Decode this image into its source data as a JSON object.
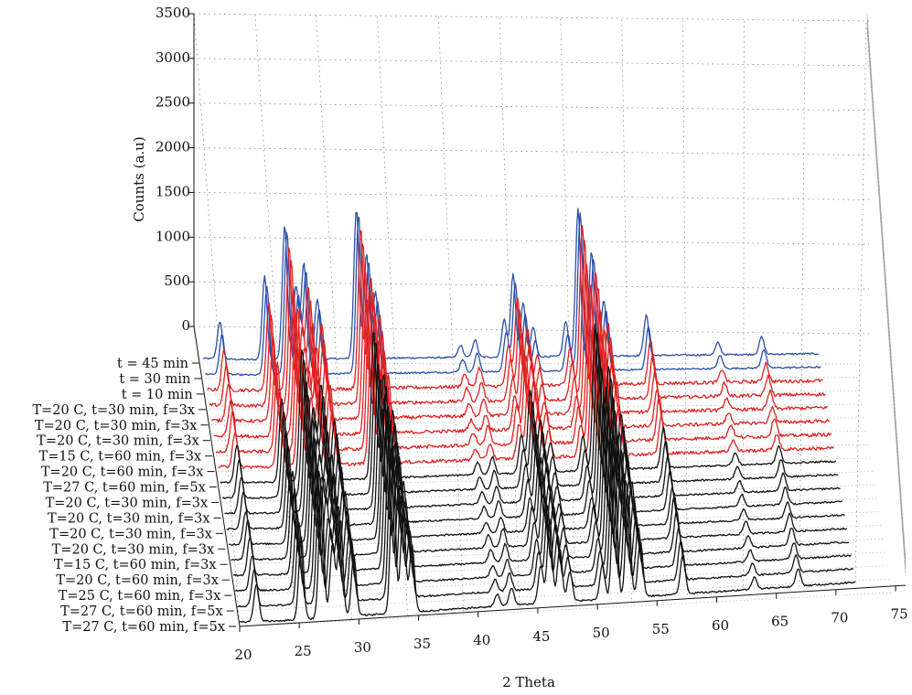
{
  "chart_data": {
    "type": "line",
    "title": "",
    "xlabel": "2 Theta",
    "zlabel": "Counts (a.u)",
    "view": "3d-waterfall",
    "grid": true,
    "xlim": [
      20,
      75
    ],
    "zlim": [
      0,
      3500
    ],
    "x_ticks": [
      20,
      25,
      30,
      35,
      40,
      45,
      50,
      55,
      60,
      65,
      70,
      75
    ],
    "z_ticks": [
      0,
      500,
      1000,
      1500,
      2000,
      2500,
      3000,
      3500
    ],
    "colors": {
      "blue": "#2b4fa8",
      "red": "#e02020",
      "black": "#111111"
    },
    "peaks_2theta": [
      {
        "x": 21.5,
        "h": 0.28
      },
      {
        "x": 25.5,
        "h": 0.62
      },
      {
        "x": 27.3,
        "h": 1.0
      },
      {
        "x": 28.3,
        "h": 0.55
      },
      {
        "x": 29.0,
        "h": 0.72
      },
      {
        "x": 30.2,
        "h": 0.45
      },
      {
        "x": 33.7,
        "h": 1.12
      },
      {
        "x": 34.6,
        "h": 0.78
      },
      {
        "x": 35.4,
        "h": 0.5
      },
      {
        "x": 43.0,
        "h": 0.09
      },
      {
        "x": 44.3,
        "h": 0.13
      },
      {
        "x": 46.9,
        "h": 0.28
      },
      {
        "x": 47.7,
        "h": 0.62
      },
      {
        "x": 48.6,
        "h": 0.4
      },
      {
        "x": 49.5,
        "h": 0.22
      },
      {
        "x": 52.4,
        "h": 0.26
      },
      {
        "x": 53.5,
        "h": 1.1
      },
      {
        "x": 54.7,
        "h": 0.78
      },
      {
        "x": 55.8,
        "h": 0.42
      },
      {
        "x": 59.6,
        "h": 0.3
      },
      {
        "x": 66.0,
        "h": 0.09
      },
      {
        "x": 69.9,
        "h": 0.13
      }
    ],
    "series": [
      {
        "name": "t = 45 min",
        "color": "blue"
      },
      {
        "name": "t = 30 min",
        "color": "blue"
      },
      {
        "name": "t = 10 min",
        "color": "red"
      },
      {
        "name": "T=20 C, t=30 min, f=3x",
        "color": "red"
      },
      {
        "name": "T=20 C, t=30 min, f=3x",
        "color": "red"
      },
      {
        "name": "T=20 C, t=30 min, f=3x",
        "color": "red"
      },
      {
        "name": "T=15 C, t=60 min, f=3x",
        "color": "red"
      },
      {
        "name": "T=20 C, t=60 min, f=3x",
        "color": "red"
      },
      {
        "name": "T=27 C, t=60 min, f=5x",
        "color": "black"
      },
      {
        "name": "T=20 C, t=30 min, f=3x",
        "color": "black"
      },
      {
        "name": "T=20 C, t=30 min, f=3x",
        "color": "black"
      },
      {
        "name": "T=20 C, t=30 min, f=3x",
        "color": "black"
      },
      {
        "name": "T=20 C, t=30 min, f=3x",
        "color": "black"
      },
      {
        "name": "T=15 C, t=60 min, f=3x",
        "color": "black"
      },
      {
        "name": "T=20 C, t=60 min, f=3x",
        "color": "black"
      },
      {
        "name": "T=25 C, t=60 min, f=3x",
        "color": "black"
      },
      {
        "name": "T=27 C, t=60 min, f=5x",
        "color": "black"
      },
      {
        "name": "T=27 C, t=60 min, f=5x",
        "color": "black"
      }
    ]
  }
}
